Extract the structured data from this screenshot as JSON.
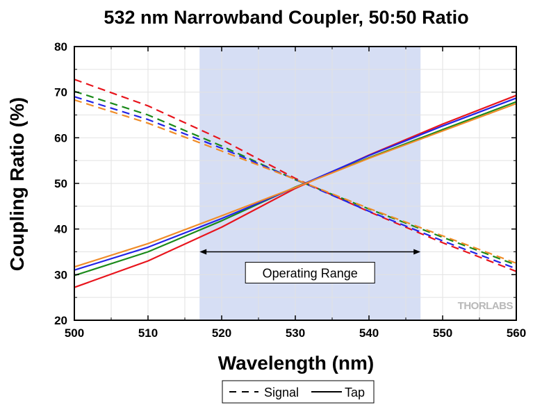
{
  "chart_data": {
    "type": "line",
    "title": "532 nm Narrowband Coupler, 50:50 Ratio",
    "xlabel": "Wavelength (nm)",
    "ylabel": "Coupling Ratio (%)",
    "xlim": [
      500,
      560
    ],
    "ylim": [
      20,
      80
    ],
    "x_ticks": [
      "500",
      "510",
      "520",
      "530",
      "540",
      "550",
      "560"
    ],
    "y_ticks": [
      "20",
      "30",
      "40",
      "50",
      "60",
      "70",
      "80"
    ],
    "grid": true,
    "shaded_region": {
      "x": [
        517,
        547
      ],
      "color": "#d6def4"
    },
    "annotation": {
      "text": "Operating Range",
      "x": [
        517,
        547
      ],
      "y": 35
    },
    "legend": {
      "placement": "bottom-center",
      "entries": [
        {
          "label": "Signal",
          "style": "dashed"
        },
        {
          "label": "Tap",
          "style": "solid"
        }
      ]
    },
    "logo": "THORLABS",
    "x": [
      500,
      510,
      520,
      530,
      540,
      550,
      560
    ],
    "series": [
      {
        "color": "#e8141c",
        "style": "dashed",
        "values": [
          72.8,
          67.0,
          59.6,
          51.1,
          43.8,
          37.0,
          30.7
        ]
      },
      {
        "color": "#1a8a1a",
        "style": "dashed",
        "values": [
          70.2,
          65.0,
          58.2,
          50.8,
          44.4,
          38.2,
          32.1
        ]
      },
      {
        "color": "#2323e6",
        "style": "dashed",
        "values": [
          69.0,
          64.0,
          57.7,
          50.9,
          43.9,
          37.4,
          31.3
        ]
      },
      {
        "color": "#f08c28",
        "style": "dashed",
        "values": [
          68.3,
          63.2,
          57.1,
          50.9,
          44.5,
          38.5,
          32.5
        ]
      },
      {
        "color": "#e8141c",
        "style": "solid",
        "values": [
          27.2,
          33.0,
          40.4,
          48.9,
          56.2,
          63.0,
          69.3
        ]
      },
      {
        "color": "#1a8a1a",
        "style": "solid",
        "values": [
          29.8,
          35.0,
          41.8,
          49.2,
          55.6,
          61.8,
          67.9
        ]
      },
      {
        "color": "#2323e6",
        "style": "solid",
        "values": [
          31.0,
          36.0,
          42.3,
          49.1,
          56.1,
          62.6,
          68.7
        ]
      },
      {
        "color": "#f08c28",
        "style": "solid",
        "values": [
          31.7,
          36.8,
          42.9,
          49.1,
          55.5,
          61.5,
          67.5
        ]
      }
    ]
  }
}
